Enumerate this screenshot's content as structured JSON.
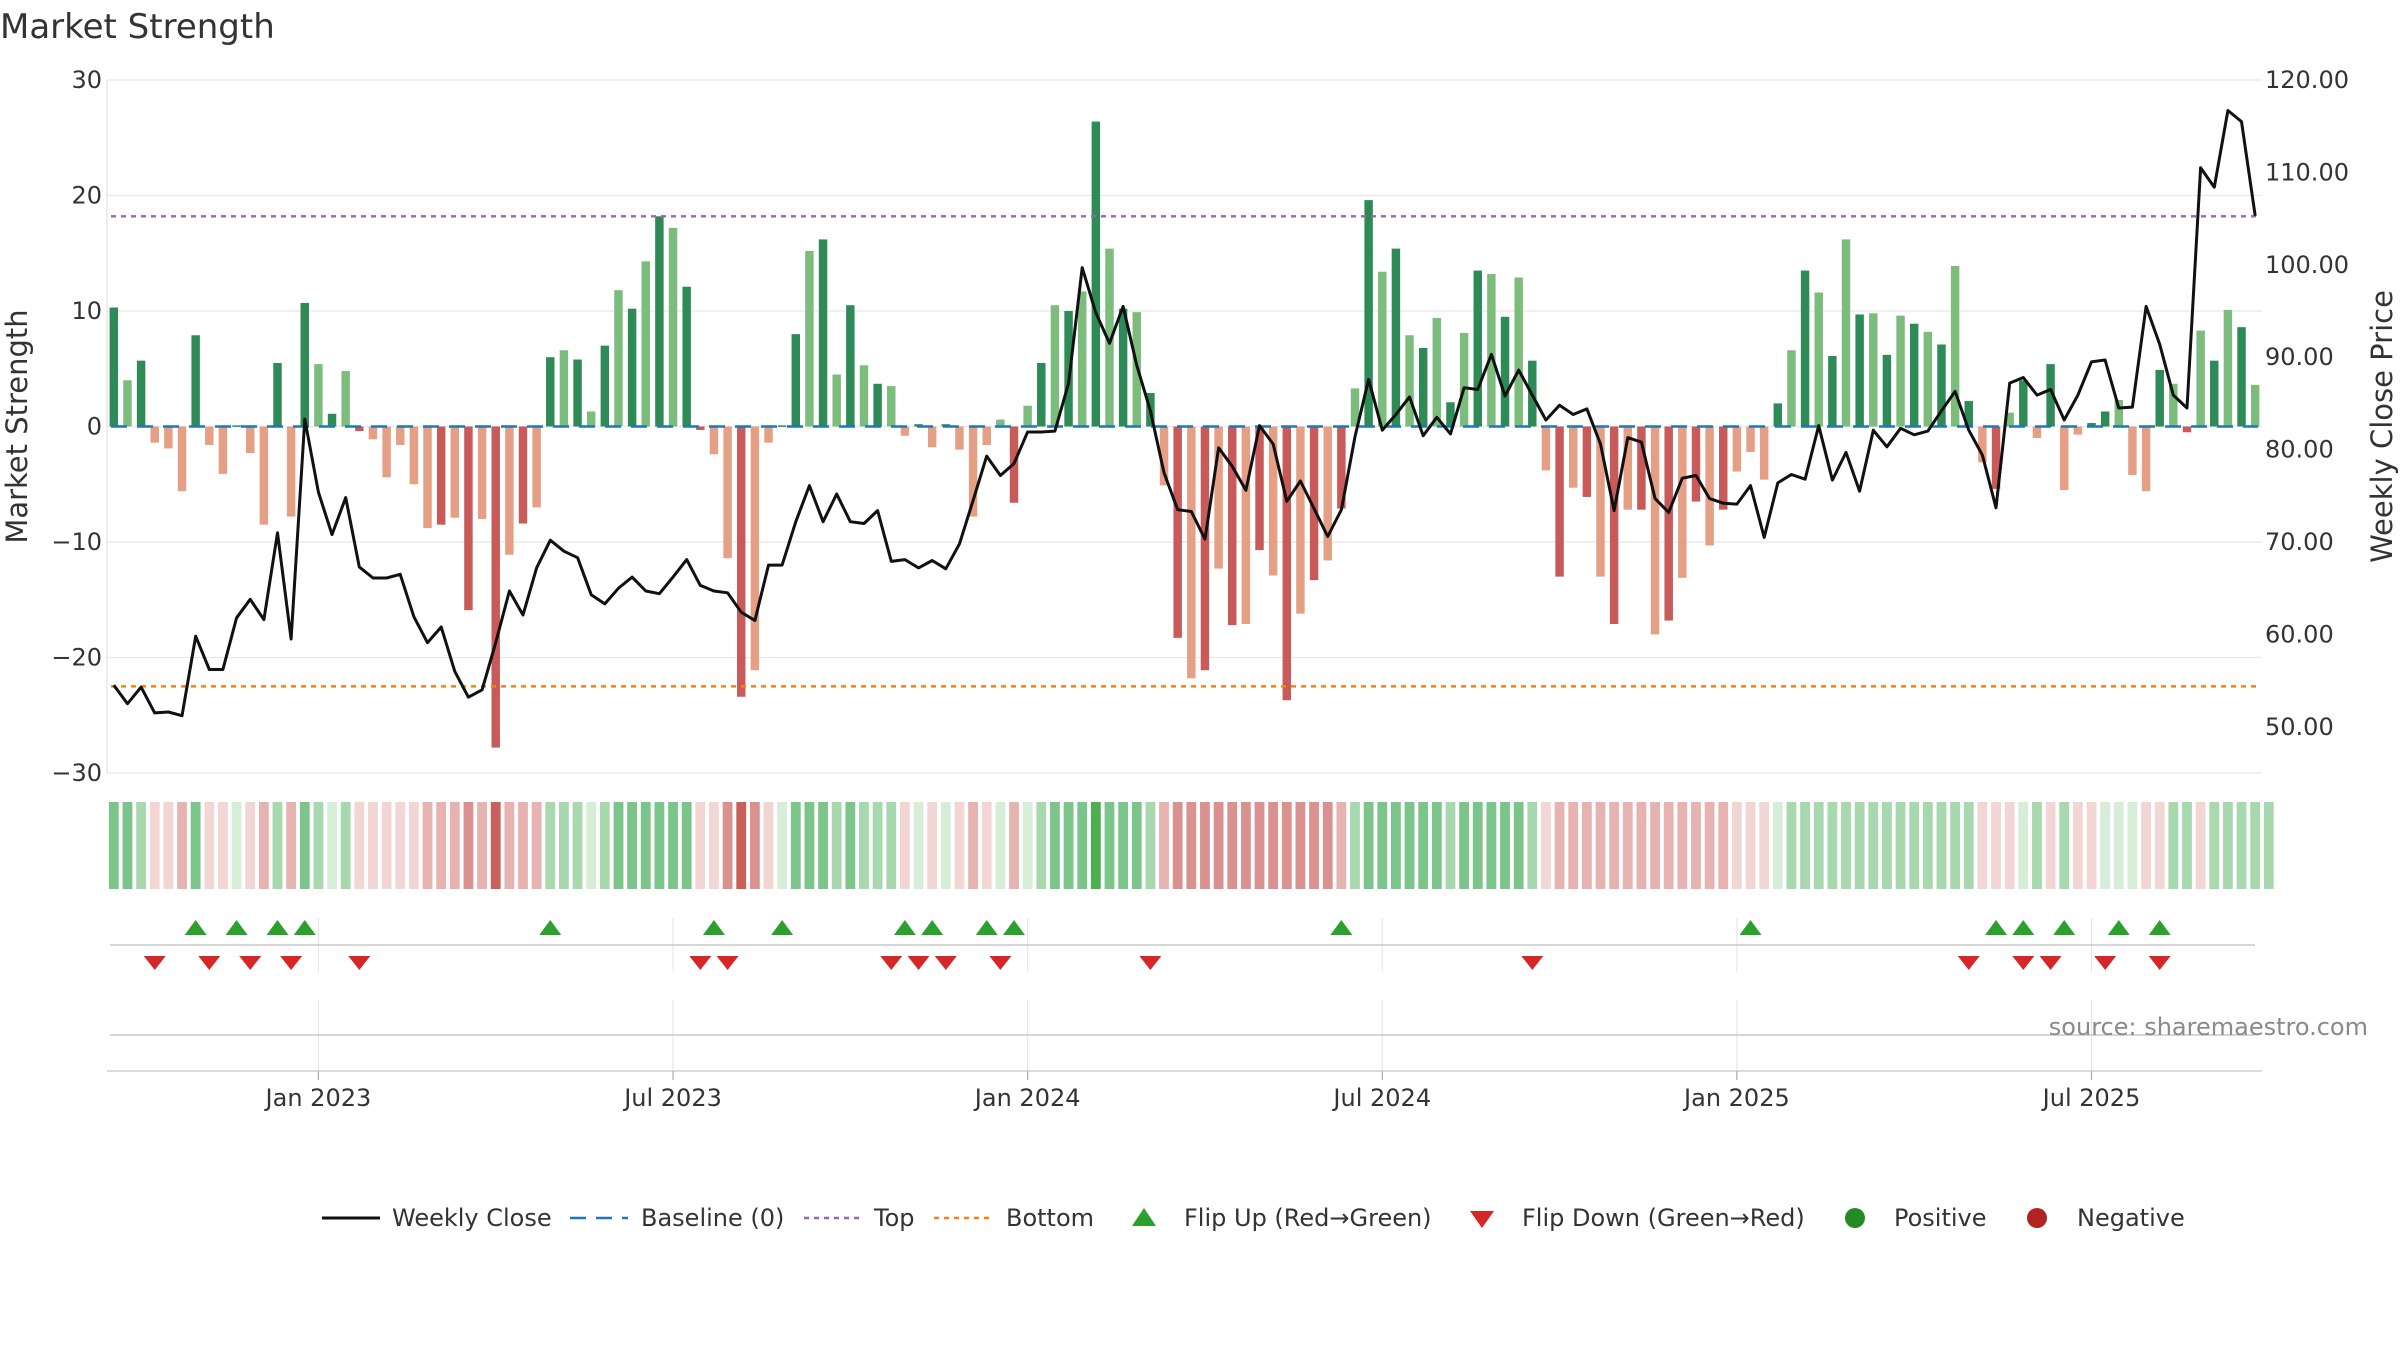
{
  "chart_data": {
    "type": "bar+line",
    "title": "Market Strength",
    "ylabel_left": "Market Strength",
    "ylabel_right": "Weekly Close Price",
    "ylim_left": [
      -30,
      30
    ],
    "ylim_right": [
      45,
      120
    ],
    "yticks_left": [
      "30",
      "20",
      "10",
      "0",
      "−10",
      "−20",
      "−30"
    ],
    "yticks_left_values": [
      30,
      20,
      10,
      0,
      -10,
      -20,
      -30
    ],
    "yticks_right": [
      "120.00",
      "110.00",
      "100.00",
      "90.00",
      "80.00",
      "70.00",
      "60.00",
      "50.00"
    ],
    "yticks_right_values": [
      120,
      110,
      100,
      90,
      80,
      70,
      60,
      50
    ],
    "xticks": [
      "Jan 2023",
      "Jul 2023",
      "Jan 2024",
      "Jul 2024",
      "Jan 2025",
      "Jul 2025"
    ],
    "xtick_weeks": [
      15,
      41,
      67,
      93,
      119,
      145
    ],
    "top_line": 18.2,
    "bottom_line": -22.5,
    "weeks": 158,
    "strength": [
      10.3,
      4,
      5.7,
      -1.4,
      -1.9,
      -5.6,
      7.9,
      -1.6,
      -4.1,
      0.1,
      -2.3,
      -8.5,
      5.5,
      -7.8,
      10.7,
      5.4,
      1.1,
      4.8,
      -0.4,
      -1.1,
      -4.4,
      -1.6,
      -5,
      -8.8,
      -8.5,
      -7.9,
      -15.9,
      -8,
      -27.8,
      -11.1,
      -8.4,
      -7,
      6,
      6.6,
      5.8,
      1.3,
      7,
      11.8,
      10.2,
      14.3,
      18.2,
      17.2,
      12.1,
      -0.3,
      -2.4,
      -11.4,
      -23.4,
      -21.1,
      -1.4,
      0.1,
      8,
      15.2,
      16.2,
      4.5,
      10.5,
      5.3,
      3.7,
      3.5,
      -0.8,
      0.2,
      -1.8,
      0.2,
      -2,
      -7.8,
      -1.6,
      0.6,
      -6.6,
      1.8,
      5.5,
      10.5,
      10,
      11.7,
      26.4,
      15.4,
      10.2,
      9.9,
      2.9,
      -5.1,
      -18.3,
      -21.8,
      -21.1,
      -12.3,
      -17.2,
      -17.1,
      -10.7,
      -12.9,
      -23.7,
      -16.2,
      -13.3,
      -11.6,
      -7.1,
      3.3,
      19.6,
      13.4,
      15.4,
      7.9,
      6.8,
      9.4,
      2.1,
      8.1,
      13.5,
      13.2,
      9.5,
      12.9,
      5.7,
      -3.8,
      -13,
      -5.3,
      -6.1,
      -13,
      -17.1,
      -7.2,
      -7.2,
      -18,
      -16.8,
      -13.1,
      -6.5,
      -10.3,
      -7.2,
      -3.9,
      -2.2,
      -4.6,
      2,
      6.6,
      13.5,
      11.6,
      6.1,
      16.2,
      9.7,
      9.8,
      6.2,
      9.6,
      8.9,
      8.2,
      7.1,
      13.9,
      2.2,
      -3.1,
      -5.4,
      1.2,
      4,
      -1,
      5.4,
      -5.5,
      -0.7,
      0.3,
      1.3,
      2.3,
      -4.2,
      -5.6,
      4.9,
      3.7,
      -0.5,
      8.3,
      5.7,
      10.1,
      8.6,
      3.6
    ],
    "close": [
      54.5,
      52.5,
      54.3,
      51.5,
      51.6,
      51.2,
      59.8,
      56.2,
      56.2,
      61.8,
      63.8,
      61.6,
      71,
      59.5,
      83.3,
      75.4,
      70.8,
      74.8,
      67.3,
      66.1,
      66.1,
      66.5,
      61.9,
      59.1,
      60.8,
      56,
      53.2,
      54,
      59.1,
      64.7,
      62.1,
      67.2,
      70.2,
      69,
      68.3,
      64.3,
      63.3,
      65,
      66.2,
      64.7,
      64.4,
      66.2,
      68.1,
      65.3,
      64.7,
      64.5,
      62.4,
      61.5,
      67.5,
      67.5,
      72.2,
      76.1,
      72.2,
      75.2,
      72.2,
      72,
      73.4,
      67.9,
      68.1,
      67.2,
      68,
      67.1,
      69.8,
      74.5,
      79.3,
      77.2,
      78.5,
      81.9,
      81.9,
      82,
      87.2,
      99.7,
      94.8,
      91.5,
      95.5,
      89.1,
      84.2,
      77.5,
      73.5,
      73.3,
      70.3,
      80.2,
      78.2,
      75.6,
      82.6,
      80.6,
      74.4,
      76.6,
      73.6,
      70.6,
      73.5,
      81.4,
      87.6,
      82.1,
      83.8,
      85.7,
      81.5,
      83.5,
      81.7,
      86.7,
      86.5,
      90.3,
      85.8,
      88.6,
      85.9,
      83.2,
      84.8,
      83.8,
      84.4,
      80.6,
      73.4,
      81.3,
      80.8,
      74.7,
      73.2,
      76.9,
      77.2,
      74.7,
      74.2,
      74.1,
      76.1,
      70.5,
      76.4,
      77.3,
      76.8,
      82.6,
      76.7,
      79.7,
      75.5,
      82.1,
      80.3,
      82.3,
      81.6,
      82,
      84.2,
      86.3,
      82.1,
      79.4,
      73.7,
      87.2,
      87.8,
      85.9,
      86.5,
      83.2,
      85.9,
      89.5,
      89.7,
      84.5,
      84.6,
      95.5,
      91.4,
      85.9,
      84.5,
      110.5,
      108.4,
      116.7,
      115.5,
      105.3
    ],
    "band_values": [
      3,
      3,
      2,
      -1,
      -1,
      -2,
      3,
      -1,
      -1,
      1,
      -1,
      -2,
      2,
      -2,
      3,
      2,
      1,
      2,
      -1,
      -1,
      -1,
      -1,
      -1,
      -2,
      -2,
      -2,
      -3,
      -2,
      -4,
      -2,
      -2,
      -2,
      2,
      2,
      2,
      1,
      2,
      3,
      3,
      3,
      3,
      3,
      3,
      -1,
      -1,
      -3,
      -4,
      -3,
      -1,
      1,
      3,
      3,
      3,
      2,
      3,
      2,
      2,
      2,
      -1,
      1,
      -1,
      1,
      -1,
      -2,
      -1,
      1,
      -2,
      1,
      2,
      3,
      3,
      3,
      4,
      3,
      3,
      3,
      2,
      -2,
      -3,
      -3,
      -3,
      -3,
      -3,
      -3,
      -3,
      -3,
      -3,
      -3,
      -3,
      -3,
      -2,
      2,
      3,
      3,
      3,
      3,
      3,
      3,
      2,
      3,
      3,
      3,
      3,
      3,
      2,
      -1,
      -2,
      -2,
      -2,
      -2,
      -2,
      -2,
      -2,
      -2,
      -2,
      -2,
      -2,
      -2,
      -2,
      -1,
      -1,
      -1,
      1,
      2,
      2,
      2,
      2,
      2,
      2,
      2,
      2,
      2,
      2,
      2,
      2,
      2,
      2,
      -1,
      -1,
      -1,
      1,
      2,
      -1,
      2,
      -1,
      -1,
      1,
      1,
      1,
      -1,
      -1,
      2,
      2,
      -1,
      2,
      2,
      2,
      2,
      2
    ],
    "flip_up_weeks": [
      6,
      9,
      12,
      14,
      32,
      44,
      49,
      58,
      60,
      64,
      66,
      90,
      120,
      138,
      140,
      143,
      147,
      150
    ],
    "flip_down_weeks": [
      3,
      7,
      10,
      13,
      18,
      43,
      45,
      57,
      59,
      61,
      65,
      76,
      104,
      136,
      140,
      142,
      146,
      150
    ],
    "legend": [
      "Weekly Close",
      "Baseline (0)",
      "Top",
      "Bottom",
      "Flip Up (Red→Green)",
      "Flip Down (Green→Red)",
      "Positive",
      "Negative"
    ],
    "source": "source: sharemaestro.com",
    "colors": {
      "pos_strong": "#2e8b57",
      "pos_weak": "#7cbd7d",
      "neg_strong": "#c85a5a",
      "neg_weak": "#e59f84",
      "close": "#111111",
      "baseline": "#1f77b4",
      "top": "#9467bd",
      "bottom": "#ff7f0e",
      "flip_up": "#2ca02c",
      "flip_down": "#d62728",
      "positive": "#228b22",
      "negative": "#b22222",
      "band_pos": [
        "#d6edd8",
        "#a8d8ae",
        "#7cc58a",
        "#4caf50"
      ],
      "band_neg": [
        "#f2d6d4",
        "#e6b3b0",
        "#da9290",
        "#c8605c"
      ]
    }
  }
}
